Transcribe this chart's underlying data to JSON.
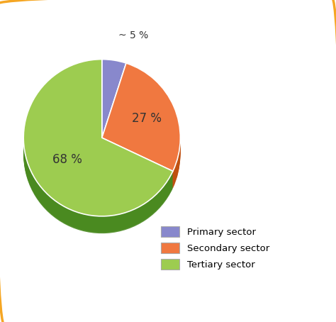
{
  "sectors": [
    "Primary sector",
    "Secondary sector",
    "Tertiary sector"
  ],
  "values": [
    5,
    27,
    68
  ],
  "colors": [
    "#8888cc",
    "#f07840",
    "#9dcc50"
  ],
  "dark_colors": [
    "#6666aa",
    "#c05010",
    "#4a8a20"
  ],
  "labels": [
    "~ 5 %",
    "27 %",
    "68 %"
  ],
  "background_color": "#ffffff",
  "border_color": "#f5a623",
  "startangle": 90,
  "legend_labels": [
    "Primary sector",
    "Secondary sector",
    "Tertiary sector"
  ],
  "legend_colors": [
    "#8888cc",
    "#f07840",
    "#9dcc50"
  ]
}
